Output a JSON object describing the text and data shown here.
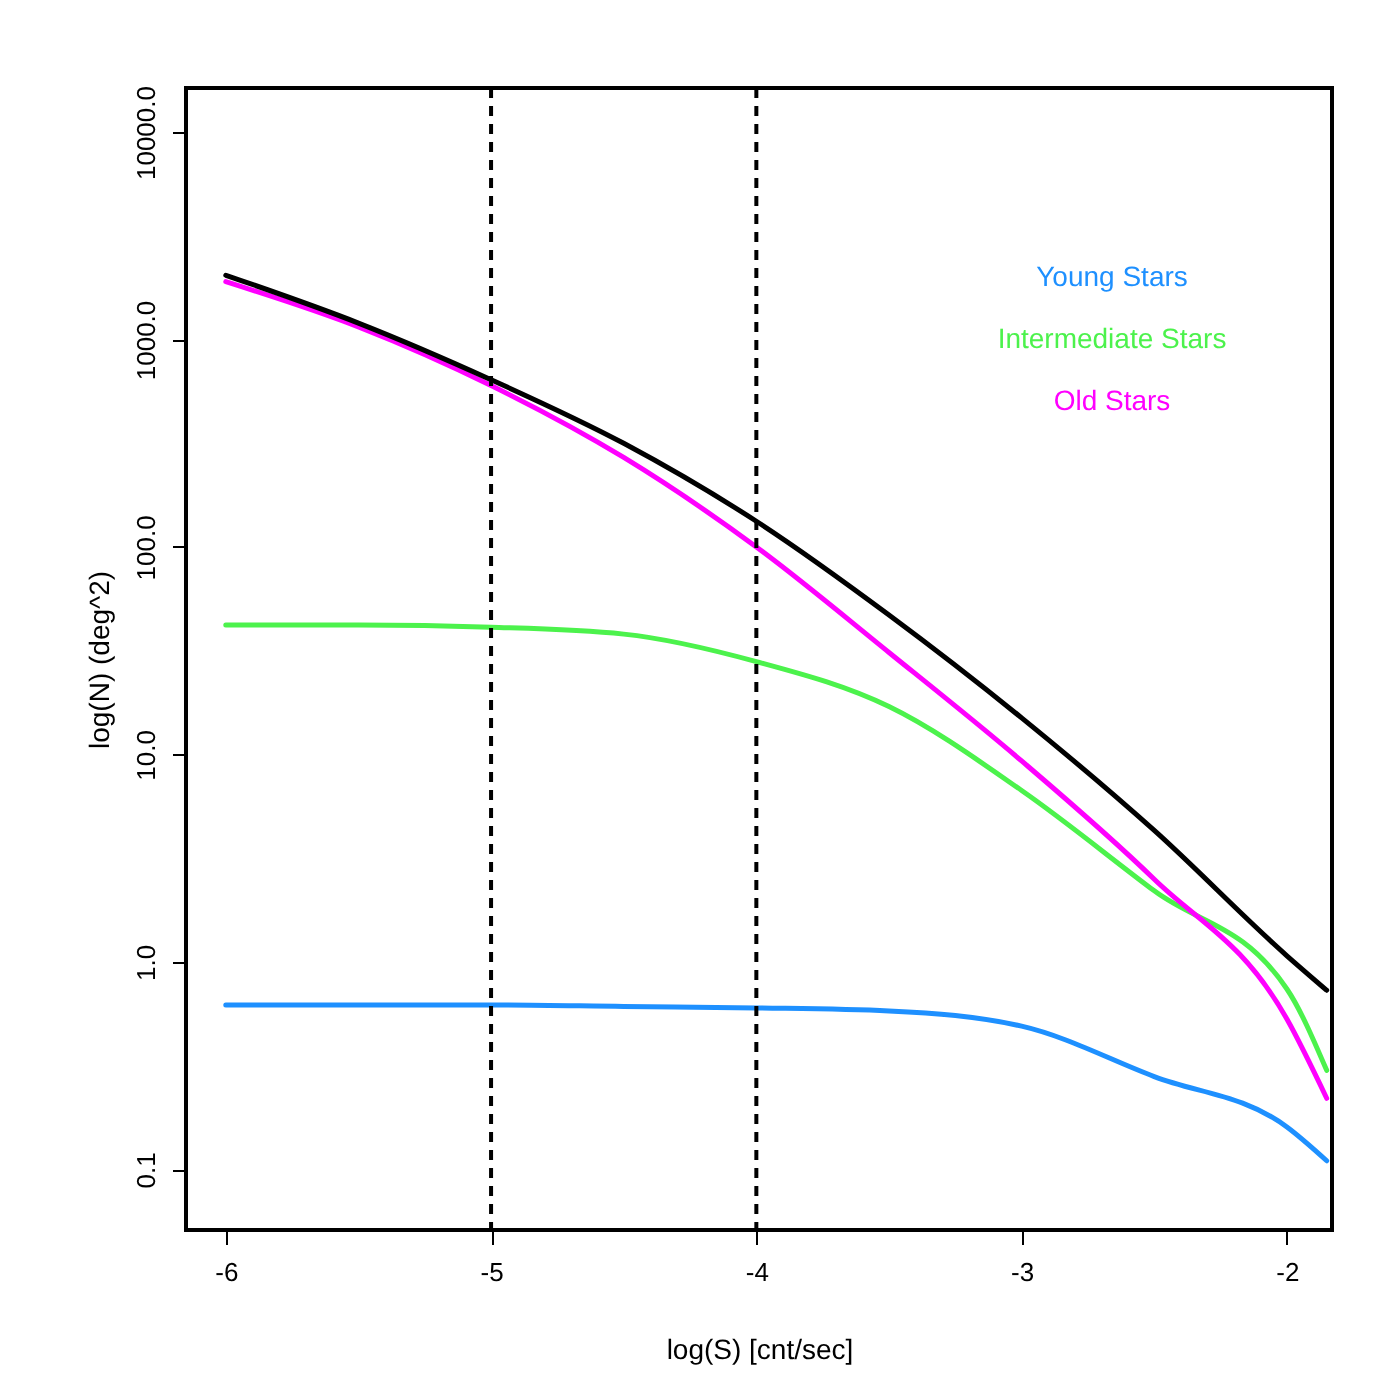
{
  "chart_data": {
    "type": "line",
    "xlabel": "log(S) [cnt/sec]",
    "ylabel": "log(N) (deg^2)",
    "x": [
      -6,
      -5.5,
      -5,
      -4.5,
      -4,
      -3.5,
      -3,
      -2.5,
      -2,
      -1.85
    ],
    "series": [
      {
        "name": "Young Stars",
        "color": "#1e90ff",
        "values": [
          0.62,
          0.62,
          0.62,
          0.61,
          0.6,
          0.58,
          0.49,
          0.28,
          0.16,
          0.11
        ]
      },
      {
        "name": "Intermediate Stars",
        "color": "#4cf24c",
        "values": [
          42,
          42,
          41,
          38,
          28,
          17,
          6.7,
          2.2,
          0.74,
          0.3
        ]
      },
      {
        "name": "Old Stars",
        "color": "#ff00ff",
        "values": [
          1900,
          1150,
          600,
          270,
          100,
          31,
          9.3,
          2.5,
          0.53,
          0.22
        ]
      },
      {
        "color": "#000000",
        "values": [
          2040,
          1200,
          640,
          316,
          133,
          47,
          15,
          4.3,
          1.07,
          0.73
        ]
      }
    ],
    "xlim": [
      -6.15,
      -1.83
    ],
    "xticks": [
      -6,
      -5,
      -4,
      -3,
      -2
    ],
    "ylim": [
      0.051,
      16300
    ],
    "log": true,
    "yticks": [
      {
        "value": 0.1,
        "label": "0.1"
      },
      {
        "value": 1,
        "label": "1.0"
      },
      {
        "value": 10,
        "label": "10.0"
      },
      {
        "value": 100,
        "label": "100.0"
      },
      {
        "value": 1000,
        "label": "1000.0"
      },
      {
        "value": 10000,
        "label": "10000.0"
      }
    ],
    "ref_lines": [
      {
        "axis": "x",
        "value": -5,
        "color": "#000000",
        "line_style": "dashed"
      },
      {
        "axis": "x",
        "value": -4,
        "color": "#000000",
        "line_style": "dashed"
      }
    ],
    "grid": false,
    "line_style": "solid"
  }
}
